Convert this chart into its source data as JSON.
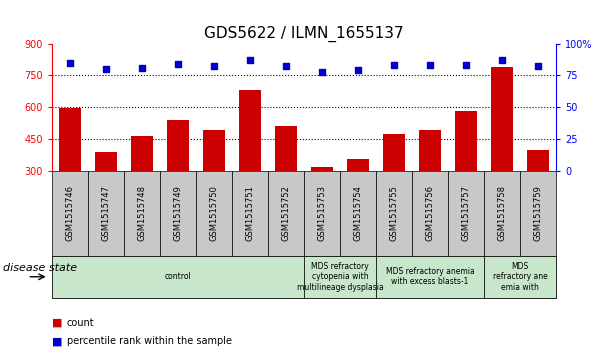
{
  "title": "GDS5622 / ILMN_1655137",
  "samples": [
    "GSM1515746",
    "GSM1515747",
    "GSM1515748",
    "GSM1515749",
    "GSM1515750",
    "GSM1515751",
    "GSM1515752",
    "GSM1515753",
    "GSM1515754",
    "GSM1515755",
    "GSM1515756",
    "GSM1515757",
    "GSM1515758",
    "GSM1515759"
  ],
  "counts": [
    595,
    390,
    465,
    540,
    490,
    680,
    510,
    315,
    355,
    475,
    490,
    580,
    790,
    395
  ],
  "percentile_ranks": [
    85,
    80,
    81,
    84,
    82,
    87,
    82,
    78,
    79,
    83,
    83,
    83,
    87,
    82
  ],
  "disease_groups": [
    {
      "label": "control",
      "start": 0,
      "end": 7,
      "color": "#c8e6c9"
    },
    {
      "label": "MDS refractory\ncytopenia with\nmultilineage dysplasia",
      "start": 7,
      "end": 9,
      "color": "#c8e6c9"
    },
    {
      "label": "MDS refractory anemia\nwith excess blasts-1",
      "start": 9,
      "end": 12,
      "color": "#c8e6c9"
    },
    {
      "label": "MDS\nrefractory ane\nemia with",
      "start": 12,
      "end": 14,
      "color": "#c8e6c9"
    }
  ],
  "bar_color": "#cc0000",
  "dot_color": "#0000cc",
  "ylim_left": [
    300,
    900
  ],
  "ylim_right": [
    0,
    100
  ],
  "yticks_left": [
    300,
    450,
    600,
    750,
    900
  ],
  "yticks_right": [
    0,
    25,
    50,
    75,
    100
  ],
  "hlines": [
    450,
    600,
    750
  ],
  "disease_state_label": "disease state",
  "legend_count": "count",
  "legend_percentile": "percentile rank within the sample",
  "title_fontsize": 11,
  "tick_fontsize": 7,
  "label_fontsize": 8,
  "sample_box_color": "#c8c8c8"
}
